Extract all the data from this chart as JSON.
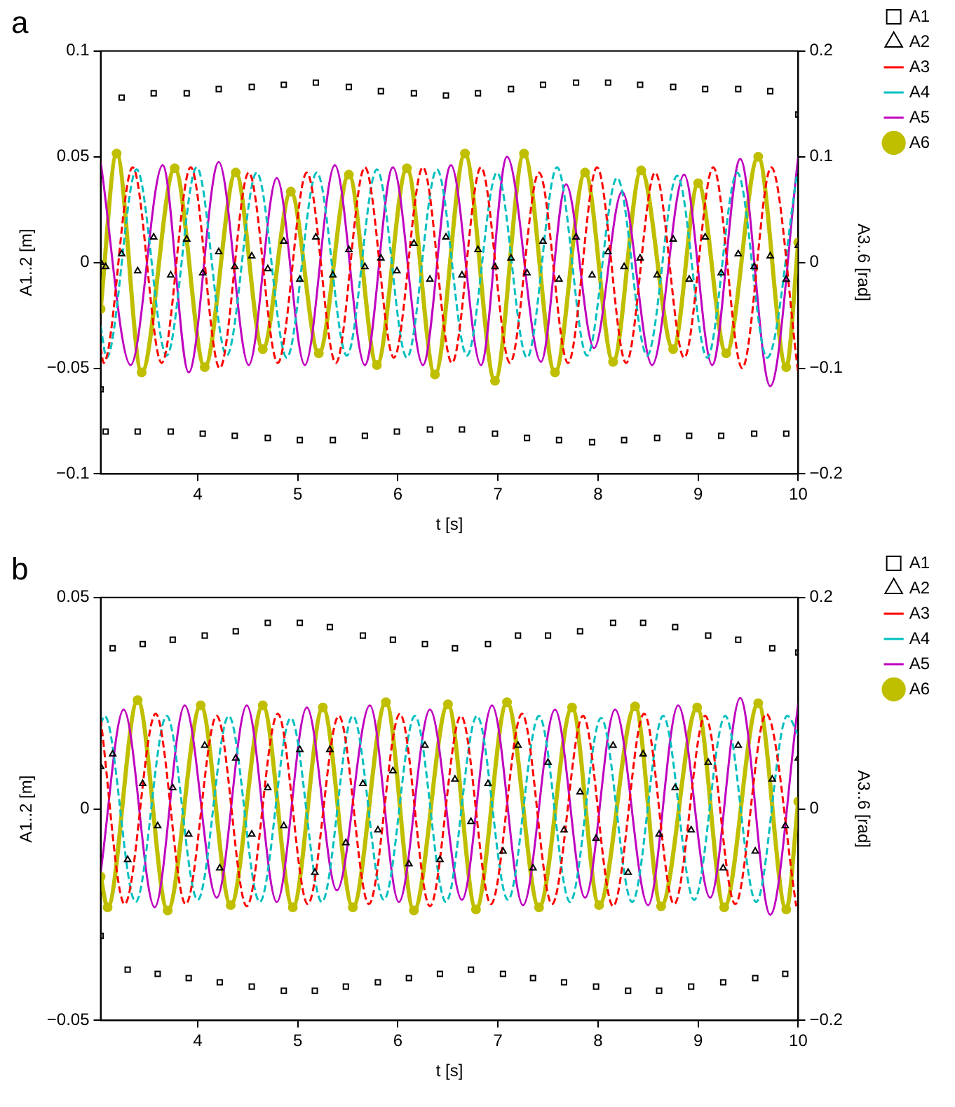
{
  "chart_data": [
    {
      "type": "line",
      "title": "a",
      "xlabel": "t [s]",
      "ylabel": "A1..2 [m]",
      "y2label": "A3..6 [rad]",
      "xlim": [
        3.03,
        10
      ],
      "xticks": [
        4,
        5,
        6,
        7,
        8,
        9,
        10
      ],
      "ylim": [
        -0.1,
        0.1
      ],
      "yticks": [
        -0.1,
        -0.05,
        0,
        0.05,
        0.1
      ],
      "y2lim": [
        -0.2,
        0.2
      ],
      "y2ticks": [
        -0.2,
        -0.1,
        0,
        0.1,
        0.2
      ],
      "grid": false,
      "legend": "right",
      "series": [
        {
          "name": "A1",
          "type": "scatter",
          "marker": "square",
          "color": "#000000",
          "x": [
            3.03,
            3.08,
            3.24,
            3.4,
            3.56,
            3.73,
            3.89,
            4.05,
            4.21,
            4.37,
            4.54,
            4.7,
            4.86,
            5.02,
            5.18,
            5.35,
            5.51,
            5.67,
            5.83,
            5.99,
            6.16,
            6.32,
            6.48,
            6.64,
            6.8,
            6.97,
            7.13,
            7.29,
            7.45,
            7.61,
            7.78,
            7.94,
            8.1,
            8.26,
            8.42,
            8.59,
            8.75,
            8.91,
            9.07,
            9.23,
            9.4,
            9.56,
            9.72,
            9.88,
            10
          ],
          "values": [
            -0.06,
            -0.08,
            0.078,
            -0.08,
            0.08,
            -0.08,
            0.08,
            -0.081,
            0.082,
            -0.082,
            0.083,
            -0.083,
            0.084,
            -0.084,
            0.085,
            -0.084,
            0.083,
            -0.082,
            0.081,
            -0.08,
            0.08,
            -0.079,
            0.079,
            -0.079,
            0.08,
            -0.081,
            0.082,
            -0.083,
            0.084,
            -0.084,
            0.085,
            -0.085,
            0.085,
            -0.084,
            0.084,
            -0.083,
            0.083,
            -0.082,
            0.082,
            -0.082,
            0.082,
            -0.081,
            0.081,
            -0.081,
            0.07
          ]
        },
        {
          "name": "A2",
          "type": "scatter",
          "marker": "triangle",
          "color": "#000000",
          "x": [
            3.03,
            3.08,
            3.24,
            3.4,
            3.56,
            3.73,
            3.89,
            4.05,
            4.21,
            4.37,
            4.54,
            4.7,
            4.86,
            5.02,
            5.18,
            5.35,
            5.51,
            5.67,
            5.83,
            5.99,
            6.16,
            6.32,
            6.48,
            6.64,
            6.8,
            6.97,
            7.13,
            7.29,
            7.45,
            7.61,
            7.78,
            7.94,
            8.1,
            8.26,
            8.42,
            8.59,
            8.75,
            8.91,
            9.07,
            9.23,
            9.4,
            9.56,
            9.72,
            9.88,
            10
          ],
          "values": [
            0,
            -0.002,
            0.004,
            -0.004,
            0.012,
            -0.006,
            0.011,
            -0.005,
            0.005,
            -0.002,
            0.003,
            -0.003,
            0.01,
            -0.008,
            0.012,
            -0.006,
            0.006,
            -0.002,
            0.002,
            -0.004,
            0.009,
            -0.008,
            0.012,
            -0.006,
            0.006,
            -0.002,
            0.002,
            -0.005,
            0.01,
            -0.008,
            0.012,
            -0.006,
            0.005,
            -0.002,
            0.002,
            -0.006,
            0.011,
            -0.008,
            0.012,
            -0.005,
            0.004,
            -0.002,
            0.003,
            -0.008,
            0.008
          ]
        },
        {
          "name": "A3",
          "type": "line",
          "axis": "y2",
          "marker": "none",
          "line_style": "dashed",
          "color": "#ff0000",
          "x": [
            3.03,
            3.06,
            3.35,
            3.64,
            3.93,
            4.22,
            4.51,
            4.8,
            5.09,
            5.38,
            5.67,
            5.96,
            6.25,
            6.54,
            6.83,
            7.12,
            7.41,
            7.7,
            7.99,
            8.28,
            8.57,
            8.86,
            9.15,
            9.44,
            9.73,
            10
          ],
          "values": [
            -0.08,
            -0.095,
            0.09,
            -0.095,
            0.09,
            -0.1,
            0.085,
            -0.095,
            0.085,
            -0.095,
            0.09,
            -0.09,
            0.09,
            -0.095,
            0.09,
            -0.095,
            0.085,
            -0.095,
            0.09,
            -0.095,
            0.085,
            -0.09,
            0.09,
            -0.1,
            0.09,
            -0.105
          ]
        },
        {
          "name": "A4",
          "type": "line",
          "axis": "y2",
          "marker": "none",
          "line_style": "dashed",
          "color": "#00bfbf",
          "x": [
            3.03,
            3.09,
            3.39,
            3.69,
            3.99,
            4.29,
            4.59,
            4.89,
            5.19,
            5.49,
            5.79,
            6.09,
            6.39,
            6.69,
            6.99,
            7.29,
            7.59,
            7.89,
            8.19,
            8.49,
            8.79,
            9.09,
            9.39,
            9.69,
            9.99
          ],
          "values": [
            -0.06,
            -0.09,
            0.088,
            -0.088,
            0.09,
            -0.088,
            0.085,
            -0.09,
            0.085,
            -0.088,
            0.088,
            -0.09,
            0.088,
            -0.088,
            0.085,
            -0.09,
            0.09,
            -0.088,
            0.08,
            -0.088,
            0.082,
            -0.09,
            0.085,
            -0.09,
            0.085
          ]
        },
        {
          "name": "A5",
          "type": "line",
          "axis": "y2",
          "marker": "none",
          "line_style": "solid",
          "color": "#bf00bf",
          "x": [
            3.03,
            3.33,
            3.65,
            3.91,
            4.21,
            4.51,
            4.79,
            5.07,
            5.37,
            5.67,
            5.95,
            6.25,
            6.53,
            6.83,
            7.09,
            7.43,
            7.68,
            7.96,
            8.24,
            8.54,
            8.86,
            9.14,
            9.42,
            9.72,
            10
          ],
          "values": [
            0.095,
            -0.097,
            0.092,
            -0.104,
            0.095,
            -0.097,
            0.08,
            -0.097,
            0.092,
            -0.097,
            0.09,
            -0.097,
            0.092,
            -0.097,
            0.1,
            -0.094,
            0.074,
            -0.081,
            0.067,
            -0.097,
            0.083,
            -0.097,
            0.098,
            -0.117,
            0.1
          ]
        },
        {
          "name": "A6",
          "type": "line",
          "axis": "y2",
          "marker": "circle",
          "line_style": "solid",
          "color": "#bfbf00",
          "x": [
            3.03,
            3.19,
            3.44,
            3.77,
            4.07,
            4.38,
            4.65,
            4.93,
            5.21,
            5.51,
            5.79,
            6.09,
            6.37,
            6.67,
            6.97,
            7.26,
            7.57,
            7.87,
            8.15,
            8.43,
            8.75,
            9,
            9.28,
            9.6,
            9.88,
            10
          ],
          "values": [
            -0.044,
            0.103,
            -0.104,
            0.089,
            -0.099,
            0.085,
            -0.082,
            0.067,
            -0.086,
            0.083,
            -0.097,
            0.089,
            -0.106,
            0.103,
            -0.112,
            0.103,
            -0.104,
            0.085,
            -0.094,
            0.087,
            -0.082,
            0.075,
            -0.086,
            0.1,
            -0.099,
            0.019
          ]
        }
      ]
    },
    {
      "type": "line",
      "title": "b",
      "xlabel": "t [s]",
      "ylabel": "A1..2 [m]",
      "y2label": "A3..6 [rad]",
      "xlim": [
        3.03,
        10
      ],
      "xticks": [
        4,
        5,
        6,
        7,
        8,
        9,
        10
      ],
      "ylim": [
        -0.05,
        0.05
      ],
      "yticks": [
        -0.05,
        0,
        0.05
      ],
      "y2lim": [
        -0.2,
        0.2
      ],
      "y2ticks": [
        -0.2,
        0,
        0.2
      ],
      "grid": false,
      "legend": "right",
      "series": [
        {
          "name": "A1",
          "type": "scatter",
          "marker": "square",
          "color": "#000000",
          "x": [
            3.03,
            3.15,
            3.3,
            3.45,
            3.6,
            3.75,
            3.91,
            4.07,
            4.22,
            4.38,
            4.54,
            4.7,
            4.86,
            5.02,
            5.17,
            5.32,
            5.48,
            5.65,
            5.8,
            5.95,
            6.11,
            6.27,
            6.42,
            6.57,
            6.73,
            6.9,
            7.05,
            7.2,
            7.35,
            7.5,
            7.66,
            7.82,
            7.98,
            8.15,
            8.3,
            8.45,
            8.61,
            8.77,
            8.93,
            9.1,
            9.25,
            9.4,
            9.57,
            9.74,
            9.87,
            10
          ],
          "values": [
            -0.03,
            0.038,
            -0.038,
            0.039,
            -0.039,
            0.04,
            -0.04,
            0.041,
            -0.041,
            0.042,
            -0.042,
            0.044,
            -0.043,
            0.044,
            -0.043,
            0.043,
            -0.042,
            0.041,
            -0.041,
            0.04,
            -0.04,
            0.039,
            -0.039,
            0.038,
            -0.038,
            0.039,
            -0.039,
            0.041,
            -0.04,
            0.041,
            -0.041,
            0.042,
            -0.042,
            0.044,
            -0.043,
            0.044,
            -0.043,
            0.043,
            -0.042,
            0.041,
            -0.041,
            0.04,
            -0.04,
            0.038,
            -0.039,
            0.037
          ]
        },
        {
          "name": "A2",
          "type": "scatter",
          "marker": "triangle",
          "color": "#000000",
          "x": [
            3.03,
            3.15,
            3.3,
            3.45,
            3.6,
            3.75,
            3.91,
            4.07,
            4.22,
            4.38,
            4.54,
            4.7,
            4.86,
            5.02,
            5.17,
            5.32,
            5.48,
            5.65,
            5.8,
            5.95,
            6.11,
            6.27,
            6.42,
            6.57,
            6.73,
            6.9,
            7.05,
            7.2,
            7.35,
            7.5,
            7.66,
            7.82,
            7.98,
            8.15,
            8.3,
            8.45,
            8.61,
            8.77,
            8.93,
            9.1,
            9.25,
            9.4,
            9.57,
            9.74,
            9.87,
            10
          ],
          "values": [
            0.01,
            0.013,
            -0.012,
            0.006,
            -0.004,
            0.005,
            -0.006,
            0.015,
            -0.014,
            0.012,
            -0.006,
            0.005,
            -0.004,
            0.014,
            -0.015,
            0.014,
            -0.008,
            0.006,
            -0.005,
            0.009,
            -0.013,
            0.015,
            -0.012,
            0.007,
            -0.003,
            0.006,
            -0.01,
            0.015,
            -0.014,
            0.011,
            -0.005,
            0.004,
            -0.007,
            0.015,
            -0.015,
            0.013,
            -0.006,
            0.005,
            -0.005,
            0.011,
            -0.014,
            0.015,
            -0.01,
            0.007,
            -0.004,
            0.012
          ]
        },
        {
          "name": "A3",
          "type": "line",
          "axis": "y2",
          "marker": "none",
          "line_style": "dashed",
          "color": "#ff0000",
          "x": [
            3.03,
            3.27,
            3.58,
            3.88,
            4.19,
            4.49,
            4.8,
            5.1,
            5.41,
            5.71,
            6.02,
            6.32,
            6.63,
            6.93,
            7.24,
            7.54,
            7.85,
            8.15,
            8.46,
            8.76,
            9.07,
            9.37,
            9.68,
            9.98
          ],
          "values": [
            0.085,
            -0.09,
            0.09,
            -0.09,
            0.088,
            -0.092,
            0.09,
            -0.09,
            0.088,
            -0.09,
            0.09,
            -0.092,
            0.088,
            -0.09,
            0.09,
            -0.09,
            0.088,
            -0.092,
            0.09,
            -0.09,
            0.088,
            -0.09,
            0.09,
            -0.092
          ]
        },
        {
          "name": "A4",
          "type": "line",
          "axis": "y2",
          "marker": "none",
          "line_style": "dashed",
          "color": "#00bfbf",
          "x": [
            3.03,
            3.07,
            3.38,
            3.69,
            4,
            4.31,
            4.62,
            4.93,
            5.24,
            5.55,
            5.86,
            6.17,
            6.48,
            6.79,
            7.1,
            7.41,
            7.72,
            8.03,
            8.34,
            8.65,
            8.96,
            9.27,
            9.58,
            9.89,
            10
          ],
          "values": [
            0.08,
            0.088,
            -0.088,
            0.088,
            -0.086,
            0.088,
            -0.088,
            0.086,
            -0.088,
            0.088,
            -0.086,
            0.088,
            -0.088,
            0.088,
            -0.086,
            0.088,
            -0.088,
            0.086,
            -0.088,
            0.088,
            -0.086,
            0.088,
            -0.088,
            0.088,
            0.07
          ]
        },
        {
          "name": "A5",
          "type": "line",
          "axis": "y2",
          "marker": "none",
          "line_style": "solid",
          "color": "#bf00bf",
          "x": [
            3.03,
            3.26,
            3.57,
            3.87,
            4.19,
            4.49,
            4.79,
            5.09,
            5.39,
            5.72,
            6.01,
            6.32,
            6.64,
            6.94,
            7.25,
            7.57,
            7.87,
            8.17,
            8.5,
            8.8,
            9.12,
            9.42,
            9.72,
            10
          ],
          "values": [
            -0.06,
            0.094,
            -0.093,
            0.098,
            -0.084,
            0.098,
            -0.088,
            0.096,
            -0.077,
            0.098,
            -0.088,
            0.094,
            -0.086,
            0.098,
            -0.091,
            0.094,
            -0.084,
            0.094,
            -0.091,
            0.098,
            -0.084,
            0.105,
            -0.1,
            0.1
          ]
        },
        {
          "name": "A6",
          "type": "line",
          "axis": "y2",
          "marker": "circle",
          "line_style": "solid",
          "color": "#bfbf00",
          "x": [
            3.03,
            3.1,
            3.4,
            3.7,
            4.03,
            4.33,
            4.65,
            4.95,
            5.25,
            5.55,
            5.88,
            6.16,
            6.5,
            6.78,
            7.09,
            7.41,
            7.74,
            8.01,
            8.37,
            8.63,
            8.99,
            9.26,
            9.6,
            9.88,
            10
          ],
          "values": [
            -0.064,
            -0.093,
            0.103,
            -0.096,
            0.098,
            -0.091,
            0.098,
            -0.093,
            0.096,
            -0.093,
            0.101,
            -0.096,
            0.099,
            -0.095,
            0.101,
            -0.093,
            0.096,
            -0.091,
            0.097,
            -0.092,
            0.096,
            -0.093,
            0.1,
            -0.095,
            0.007
          ]
        }
      ]
    }
  ]
}
